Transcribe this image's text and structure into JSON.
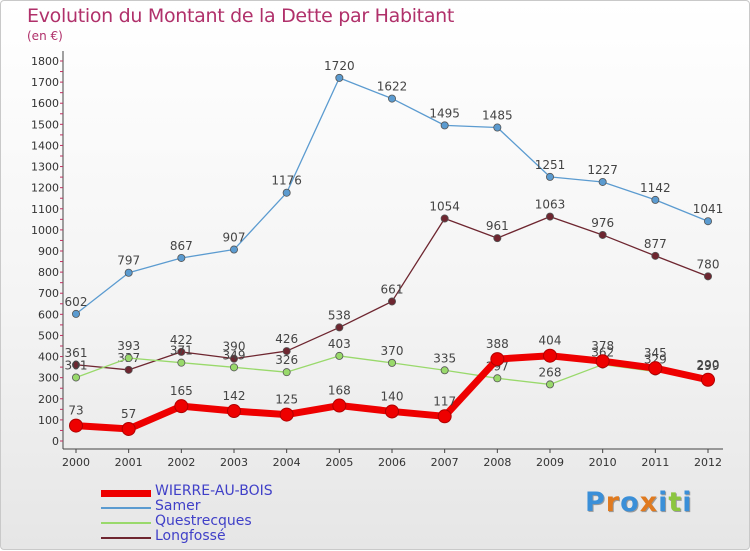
{
  "title": "Evolution du Montant de la Dette par Habitant",
  "subtitle": "(en €)",
  "brand": {
    "letters": [
      "P",
      "r",
      "o",
      "x",
      "i",
      "t",
      "i"
    ],
    "colors": [
      "#3a8fd8",
      "#e07a1f",
      "#3a8fd8",
      "#e07a1f",
      "#3a8fd8",
      "#8cc63f",
      "#3a8fd8"
    ]
  },
  "chart_data": {
    "type": "line",
    "title": "Evolution du Montant de la Dette par Habitant",
    "ylabel": "(en €)",
    "xlabel": "",
    "ylim": [
      0,
      1800
    ],
    "yticks": [
      0,
      100,
      200,
      300,
      400,
      500,
      600,
      700,
      800,
      900,
      1000,
      1100,
      1200,
      1300,
      1400,
      1500,
      1600,
      1700,
      1800
    ],
    "grid": false,
    "x": [
      "2000",
      "2001",
      "2002",
      "2003",
      "2004",
      "2005",
      "2006",
      "2007",
      "2008",
      "2009",
      "2010",
      "2011",
      "2012"
    ],
    "series": [
      {
        "name": "Samer",
        "color": "#5b9bd0",
        "values": [
          602,
          797,
          867,
          907,
          1176,
          1720,
          1622,
          1495,
          1485,
          1251,
          1227,
          1142,
          1041
        ]
      },
      {
        "name": "Longfossé",
        "color": "#6e2630",
        "values": [
          361,
          337,
          422,
          390,
          426,
          538,
          661,
          1054,
          961,
          1063,
          976,
          877,
          780
        ]
      },
      {
        "name": "Questrecques",
        "color": "#99d96b",
        "values": [
          301,
          393,
          371,
          349,
          326,
          403,
          370,
          335,
          297,
          268,
          362,
          329,
          299
        ]
      },
      {
        "name": "WIERRE-AU-BOIS",
        "color": "#ee0000",
        "values": [
          73,
          57,
          165,
          142,
          125,
          168,
          140,
          117,
          388,
          404,
          378,
          345,
          290
        ]
      }
    ],
    "legend": [
      {
        "name": "WIERRE-AU-BOIS",
        "color": "#ee0000"
      },
      {
        "name": "Samer",
        "color": "#5b9bd0"
      },
      {
        "name": "Questrecques",
        "color": "#99d96b"
      },
      {
        "name": "Longfossé",
        "color": "#6e2630"
      }
    ],
    "legend_position": "bottom-left"
  }
}
